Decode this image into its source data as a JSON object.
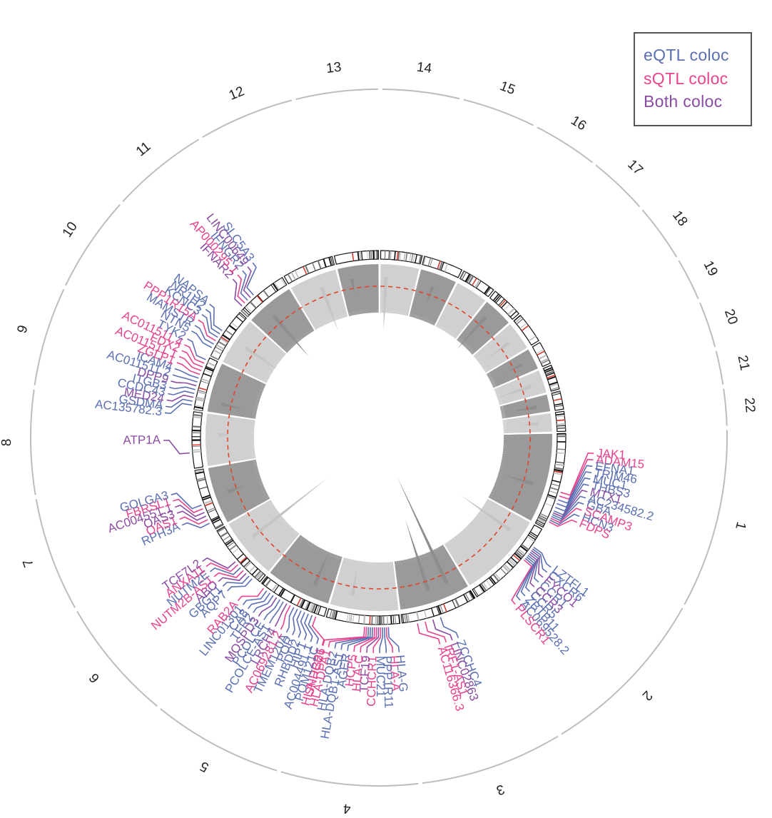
{
  "colors": {
    "eqtl": "#5b6fb2",
    "sqtl": "#e8438e",
    "both": "#8a4ca3",
    "threshold": "#e0442a",
    "manhattan_dark": "#9a9a9a",
    "manhattan_light": "#d0d0d0",
    "outer_ring": "#bdbdbd"
  },
  "legend": {
    "eqtl": "eQTL coloc",
    "sqtl": "sQTL coloc",
    "both": "Both coloc"
  },
  "chromosomes": [
    "1",
    "2",
    "3",
    "4",
    "5",
    "6",
    "7",
    "8",
    "9",
    "10",
    "11",
    "12",
    "13",
    "14",
    "15",
    "16",
    "17",
    "18",
    "19",
    "20",
    "21",
    "22"
  ],
  "chromosome_lengths_mb": [
    249,
    242,
    198,
    190,
    182,
    171,
    159,
    145,
    138,
    134,
    135,
    133,
    114,
    107,
    102,
    90,
    83,
    80,
    59,
    64,
    47,
    51
  ],
  "genes": [
    {
      "chr": "1",
      "pos": 150,
      "label": "JAK1",
      "type": "sqtl"
    },
    {
      "chr": "1",
      "pos": 160,
      "label": "ADAM15",
      "type": "sqtl"
    },
    {
      "chr": "1",
      "pos": 170,
      "label": "EFNA1",
      "type": "eqtl"
    },
    {
      "chr": "1",
      "pos": 180,
      "label": "TRIM46",
      "type": "eqtl"
    },
    {
      "chr": "1",
      "pos": 190,
      "label": "MUC1",
      "type": "eqtl"
    },
    {
      "chr": "1",
      "pos": 200,
      "label": "THBS3",
      "type": "eqtl"
    },
    {
      "chr": "1",
      "pos": 205,
      "label": "MTX1",
      "type": "both"
    },
    {
      "chr": "1",
      "pos": 210,
      "label": "AC234582.2",
      "type": "eqtl"
    },
    {
      "chr": "1",
      "pos": 215,
      "label": "GBA",
      "type": "eqtl"
    },
    {
      "chr": "1",
      "pos": 220,
      "label": "SCAMP3",
      "type": "sqtl"
    },
    {
      "chr": "1",
      "pos": 225,
      "label": "HCN3",
      "type": "eqtl"
    },
    {
      "chr": "1",
      "pos": 230,
      "label": "FDPS",
      "type": "sqtl"
    },
    {
      "chr": "2",
      "pos": 50,
      "label": "LZTFL1",
      "type": "eqtl"
    },
    {
      "chr": "2",
      "pos": 55,
      "label": "CXCR6",
      "type": "eqtl"
    },
    {
      "chr": "2",
      "pos": 60,
      "label": "FYCO1",
      "type": "both"
    },
    {
      "chr": "2",
      "pos": 65,
      "label": "CCR1",
      "type": "eqtl"
    },
    {
      "chr": "2",
      "pos": 70,
      "label": "CCR3",
      "type": "both"
    },
    {
      "chr": "2",
      "pos": 75,
      "label": "CCR5",
      "type": "eqtl"
    },
    {
      "chr": "2",
      "pos": 80,
      "label": "ZBTB11",
      "type": "eqtl"
    },
    {
      "chr": "2",
      "pos": 85,
      "label": "AC069528.2",
      "type": "eqtl"
    },
    {
      "chr": "2",
      "pos": 90,
      "label": "PLSCR1",
      "type": "sqtl"
    },
    {
      "chr": "3",
      "pos": 100,
      "label": "ZCCHC4",
      "type": "eqtl"
    },
    {
      "chr": "3",
      "pos": 120,
      "label": "LINC02863",
      "type": "both"
    },
    {
      "chr": "3",
      "pos": 140,
      "label": "IRF1-AS1",
      "type": "sqtl"
    },
    {
      "chr": "3",
      "pos": 160,
      "label": "AC116366.3",
      "type": "sqtl"
    },
    {
      "chr": "4",
      "pos": 30,
      "label": "HLA-G",
      "type": "eqtl"
    },
    {
      "chr": "4",
      "pos": 35,
      "label": "HLA-A",
      "type": "sqtl"
    },
    {
      "chr": "4",
      "pos": 40,
      "label": "PPP1R11",
      "type": "eqtl"
    },
    {
      "chr": "4",
      "pos": 45,
      "label": "MUC21",
      "type": "eqtl"
    },
    {
      "chr": "4",
      "pos": 50,
      "label": "CCHCR1",
      "type": "sqtl"
    },
    {
      "chr": "4",
      "pos": 55,
      "label": "TCF19",
      "type": "both"
    },
    {
      "chr": "4",
      "pos": 60,
      "label": "HLA-C",
      "type": "sqtl"
    },
    {
      "chr": "4",
      "pos": 65,
      "label": "HCP5",
      "type": "sqtl"
    },
    {
      "chr": "4",
      "pos": 70,
      "label": "AGER",
      "type": "eqtl"
    },
    {
      "chr": "4",
      "pos": 75,
      "label": "HLA-DQB1-AS1",
      "type": "eqtl"
    },
    {
      "chr": "4",
      "pos": 80,
      "label": "HLA-DQB2",
      "type": "eqtl"
    },
    {
      "chr": "4",
      "pos": 85,
      "label": "HLA-DPA1",
      "type": "sqtl"
    },
    {
      "chr": "4",
      "pos": 90,
      "label": "HLA-DPB1",
      "type": "sqtl"
    },
    {
      "chr": "5",
      "pos": 20,
      "label": "SNHG26",
      "type": "sqtl"
    },
    {
      "chr": "5",
      "pos": 30,
      "label": "POM121C",
      "type": "eqtl"
    },
    {
      "chr": "5",
      "pos": 40,
      "label": "AC004491.1",
      "type": "eqtl"
    },
    {
      "chr": "5",
      "pos": 50,
      "label": "HIP1",
      "type": "eqtl"
    },
    {
      "chr": "5",
      "pos": 60,
      "label": "RHBDD2",
      "type": "eqtl"
    },
    {
      "chr": "5",
      "pos": 70,
      "label": "POR",
      "type": "eqtl"
    },
    {
      "chr": "5",
      "pos": 80,
      "label": "TMEM120A",
      "type": "eqtl"
    },
    {
      "chr": "5",
      "pos": 90,
      "label": "AC069281.2",
      "type": "sqtl"
    },
    {
      "chr": "5",
      "pos": 100,
      "label": "LRCH4",
      "type": "both"
    },
    {
      "chr": "5",
      "pos": 110,
      "label": "PCOLCE-AS1",
      "type": "eqtl"
    },
    {
      "chr": "5",
      "pos": 120,
      "label": "PCOLCE",
      "type": "eqtl"
    },
    {
      "chr": "5",
      "pos": 130,
      "label": "MOSPD3",
      "type": "both"
    },
    {
      "chr": "5",
      "pos": 140,
      "label": "TFR2",
      "type": "eqtl"
    },
    {
      "chr": "5",
      "pos": 150,
      "label": "CA8",
      "type": "eqtl"
    },
    {
      "chr": "5",
      "pos": 160,
      "label": "LINC01301",
      "type": "eqtl"
    },
    {
      "chr": "5",
      "pos": 170,
      "label": "RAB2A",
      "type": "sqtl"
    },
    {
      "chr": "6",
      "pos": 20,
      "label": "AQP7",
      "type": "eqtl"
    },
    {
      "chr": "6",
      "pos": 30,
      "label": "GBGT1",
      "type": "eqtl"
    },
    {
      "chr": "6",
      "pos": 40,
      "label": "ABO",
      "type": "both"
    },
    {
      "chr": "6",
      "pos": 50,
      "label": "NUTM2B-AS1",
      "type": "sqtl"
    },
    {
      "chr": "6",
      "pos": 60,
      "label": "NUTM2E",
      "type": "eqtl"
    },
    {
      "chr": "6",
      "pos": 70,
      "label": "ANXA11",
      "type": "sqtl"
    },
    {
      "chr": "6",
      "pos": 80,
      "label": "TCF7L2",
      "type": "both"
    },
    {
      "chr": "7",
      "pos": 20,
      "label": "RPH3A",
      "type": "eqtl"
    },
    {
      "chr": "7",
      "pos": 30,
      "label": "OAS1",
      "type": "sqtl"
    },
    {
      "chr": "7",
      "pos": 40,
      "label": "OAS3",
      "type": "both"
    },
    {
      "chr": "7",
      "pos": 50,
      "label": "AC004551.1",
      "type": "both"
    },
    {
      "chr": "7",
      "pos": 60,
      "label": "FBRSL1",
      "type": "sqtl"
    },
    {
      "chr": "7",
      "pos": 70,
      "label": "GOLGA3",
      "type": "eqtl"
    },
    {
      "chr": "8",
      "pos": 40,
      "label": "ATP1A",
      "type": "both"
    },
    {
      "chr": "9",
      "pos": 10,
      "label": "AC135782.3",
      "type": "eqtl"
    },
    {
      "chr": "9",
      "pos": 20,
      "label": "GSDMA",
      "type": "eqtl"
    },
    {
      "chr": "9",
      "pos": 30,
      "label": "MED24",
      "type": "both"
    },
    {
      "chr": "9",
      "pos": 40,
      "label": "CCDC43",
      "type": "eqtl"
    },
    {
      "chr": "9",
      "pos": 50,
      "label": "ITGB3",
      "type": "eqtl"
    },
    {
      "chr": "9",
      "pos": 60,
      "label": "DPP9",
      "type": "both"
    },
    {
      "chr": "9",
      "pos": 70,
      "label": "AC011511.2",
      "type": "eqtl"
    },
    {
      "chr": "9",
      "pos": 80,
      "label": "ICAM4",
      "type": "eqtl"
    },
    {
      "chr": "9",
      "pos": 90,
      "label": "ZGLP1",
      "type": "sqtl"
    },
    {
      "chr": "9",
      "pos": 100,
      "label": "AC011511.1",
      "type": "sqtl"
    },
    {
      "chr": "9",
      "pos": 110,
      "label": "FDX2",
      "type": "sqtl"
    },
    {
      "chr": "9",
      "pos": 120,
      "label": "AC011511.4",
      "type": "sqtl"
    },
    {
      "chr": "9",
      "pos": 130,
      "label": "TYK2",
      "type": "eqtl"
    },
    {
      "chr": "10",
      "pos": 20,
      "label": "NTN5",
      "type": "eqtl"
    },
    {
      "chr": "10",
      "pos": 30,
      "label": "MAMSTR",
      "type": "eqtl"
    },
    {
      "chr": "10",
      "pos": 40,
      "label": "PPP1R15A",
      "type": "sqtl"
    },
    {
      "chr": "10",
      "pos": 50,
      "label": "KCNC3",
      "type": "eqtl"
    },
    {
      "chr": "10",
      "pos": 60,
      "label": "NR1H2",
      "type": "eqtl"
    },
    {
      "chr": "10",
      "pos": 70,
      "label": "NAPSA",
      "type": "eqtl"
    },
    {
      "chr": "11",
      "pos": 10,
      "label": "IFNAR2",
      "type": "both"
    },
    {
      "chr": "11",
      "pos": 20,
      "label": "AP000295.1",
      "type": "sqtl"
    },
    {
      "chr": "11",
      "pos": 30,
      "label": "IFNGR2",
      "type": "eqtl"
    },
    {
      "chr": "11",
      "pos": 40,
      "label": "LINC00649",
      "type": "both"
    },
    {
      "chr": "11",
      "pos": 50,
      "label": "SLC5A3",
      "type": "eqtl"
    }
  ]
}
